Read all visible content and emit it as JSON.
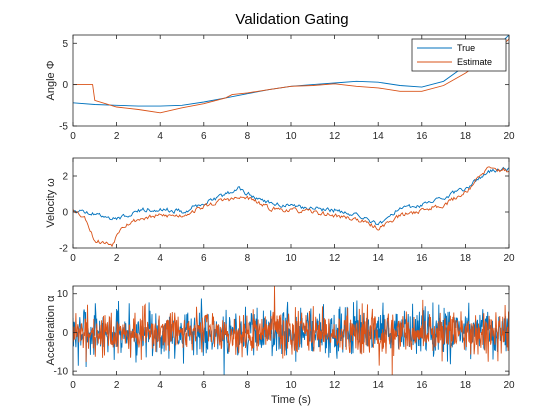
{
  "chart_data": [
    {
      "type": "line",
      "title": "Validation Gating",
      "xlabel": "",
      "ylabel": "Angle Φ",
      "xlim": [
        0,
        20
      ],
      "ylim": [
        -5,
        6
      ],
      "xticks": [
        0,
        2,
        4,
        6,
        8,
        10,
        12,
        14,
        16,
        18,
        20
      ],
      "yticks": [
        -5,
        0,
        5
      ],
      "grid": false,
      "legend": {
        "placement": "top-right",
        "entries": [
          "True",
          "Estimate"
        ]
      },
      "series": [
        {
          "name": "True",
          "color": "#0072BD",
          "points": [
            [
              0,
              -2.2
            ],
            [
              1,
              -2.4
            ],
            [
              2,
              -2.5
            ],
            [
              3,
              -2.6
            ],
            [
              4,
              -2.6
            ],
            [
              5,
              -2.5
            ],
            [
              6,
              -2.1
            ],
            [
              7,
              -1.6
            ],
            [
              8,
              -1.1
            ],
            [
              9,
              -0.6
            ],
            [
              10,
              -0.2
            ],
            [
              11,
              0.0
            ],
            [
              12,
              0.2
            ],
            [
              13,
              0.4
            ],
            [
              14,
              0.3
            ],
            [
              15,
              -0.1
            ],
            [
              16,
              -0.3
            ],
            [
              17,
              0.4
            ],
            [
              18,
              2.3
            ],
            [
              19,
              3.5
            ],
            [
              20,
              6.0
            ]
          ]
        },
        {
          "name": "Estimate",
          "color": "#D95319",
          "points": [
            [
              0,
              0.0
            ],
            [
              0.9,
              0.0
            ],
            [
              1.0,
              -1.9
            ],
            [
              2,
              -2.7
            ],
            [
              3,
              -3.0
            ],
            [
              4,
              -3.4
            ],
            [
              5,
              -2.8
            ],
            [
              6,
              -2.3
            ],
            [
              7,
              -1.6
            ],
            [
              7.3,
              -1.2
            ],
            [
              8,
              -1.0
            ],
            [
              9,
              -0.6
            ],
            [
              10,
              -0.2
            ],
            [
              11,
              -0.1
            ],
            [
              12,
              0.1
            ],
            [
              13,
              -0.2
            ],
            [
              14,
              -0.4
            ],
            [
              15,
              -0.8
            ],
            [
              16,
              -0.8
            ],
            [
              17,
              -0.1
            ],
            [
              18,
              1.4
            ],
            [
              19,
              3.2
            ],
            [
              20,
              5.5
            ]
          ]
        }
      ]
    },
    {
      "type": "line",
      "title": "",
      "xlabel": "",
      "ylabel": "Velocity ω",
      "xlim": [
        0,
        20
      ],
      "ylim": [
        -2,
        3
      ],
      "xticks": [
        0,
        2,
        4,
        6,
        8,
        10,
        12,
        14,
        16,
        18,
        20
      ],
      "yticks": [
        -2,
        0,
        2
      ],
      "grid": false,
      "noise": 0.12,
      "series": [
        {
          "name": "True",
          "color": "#0072BD",
          "points": [
            [
              0,
              0.1
            ],
            [
              1,
              -0.1
            ],
            [
              2,
              -0.4
            ],
            [
              3,
              0.1
            ],
            [
              4,
              0.2
            ],
            [
              5,
              0.0
            ],
            [
              6,
              0.5
            ],
            [
              7,
              1.0
            ],
            [
              7.6,
              1.3
            ],
            [
              8,
              1.0
            ],
            [
              9,
              0.5
            ],
            [
              10,
              0.3
            ],
            [
              11,
              0.2
            ],
            [
              12,
              0.1
            ],
            [
              13,
              -0.2
            ],
            [
              14,
              -0.7
            ],
            [
              15,
              0.2
            ],
            [
              16,
              0.4
            ],
            [
              17,
              0.8
            ],
            [
              18,
              1.3
            ],
            [
              19,
              2.2
            ],
            [
              20,
              2.4
            ]
          ]
        },
        {
          "name": "Estimate",
          "color": "#D95319",
          "points": [
            [
              0,
              0.2
            ],
            [
              0.6,
              -0.4
            ],
            [
              1,
              -1.6
            ],
            [
              1.8,
              -1.8
            ],
            [
              2.2,
              -0.8
            ],
            [
              3,
              -0.4
            ],
            [
              4,
              -0.2
            ],
            [
              5,
              -0.2
            ],
            [
              6,
              0.3
            ],
            [
              7,
              0.7
            ],
            [
              8,
              0.8
            ],
            [
              9,
              0.2
            ],
            [
              10,
              0.1
            ],
            [
              11,
              0.0
            ],
            [
              12,
              -0.2
            ],
            [
              13,
              -0.4
            ],
            [
              14,
              -0.9
            ],
            [
              15,
              -0.2
            ],
            [
              16,
              0.1
            ],
            [
              17,
              0.4
            ],
            [
              18,
              1.1
            ],
            [
              19,
              2.4
            ],
            [
              20,
              2.3
            ]
          ]
        }
      ]
    },
    {
      "type": "line",
      "title": "",
      "xlabel": "Time (s)",
      "ylabel": "Acceleration α",
      "xlim": [
        0,
        20
      ],
      "ylim": [
        -11,
        12
      ],
      "xticks": [
        0,
        2,
        4,
        6,
        8,
        10,
        12,
        14,
        16,
        18,
        20
      ],
      "yticks": [
        -10,
        0,
        10
      ],
      "grid": false,
      "series": [
        {
          "name": "True",
          "color": "#0072BD",
          "amplitude": 3.2,
          "seed": 7
        },
        {
          "name": "Estimate",
          "color": "#D95319",
          "amplitude": 2.8,
          "seed": 19
        }
      ]
    }
  ]
}
